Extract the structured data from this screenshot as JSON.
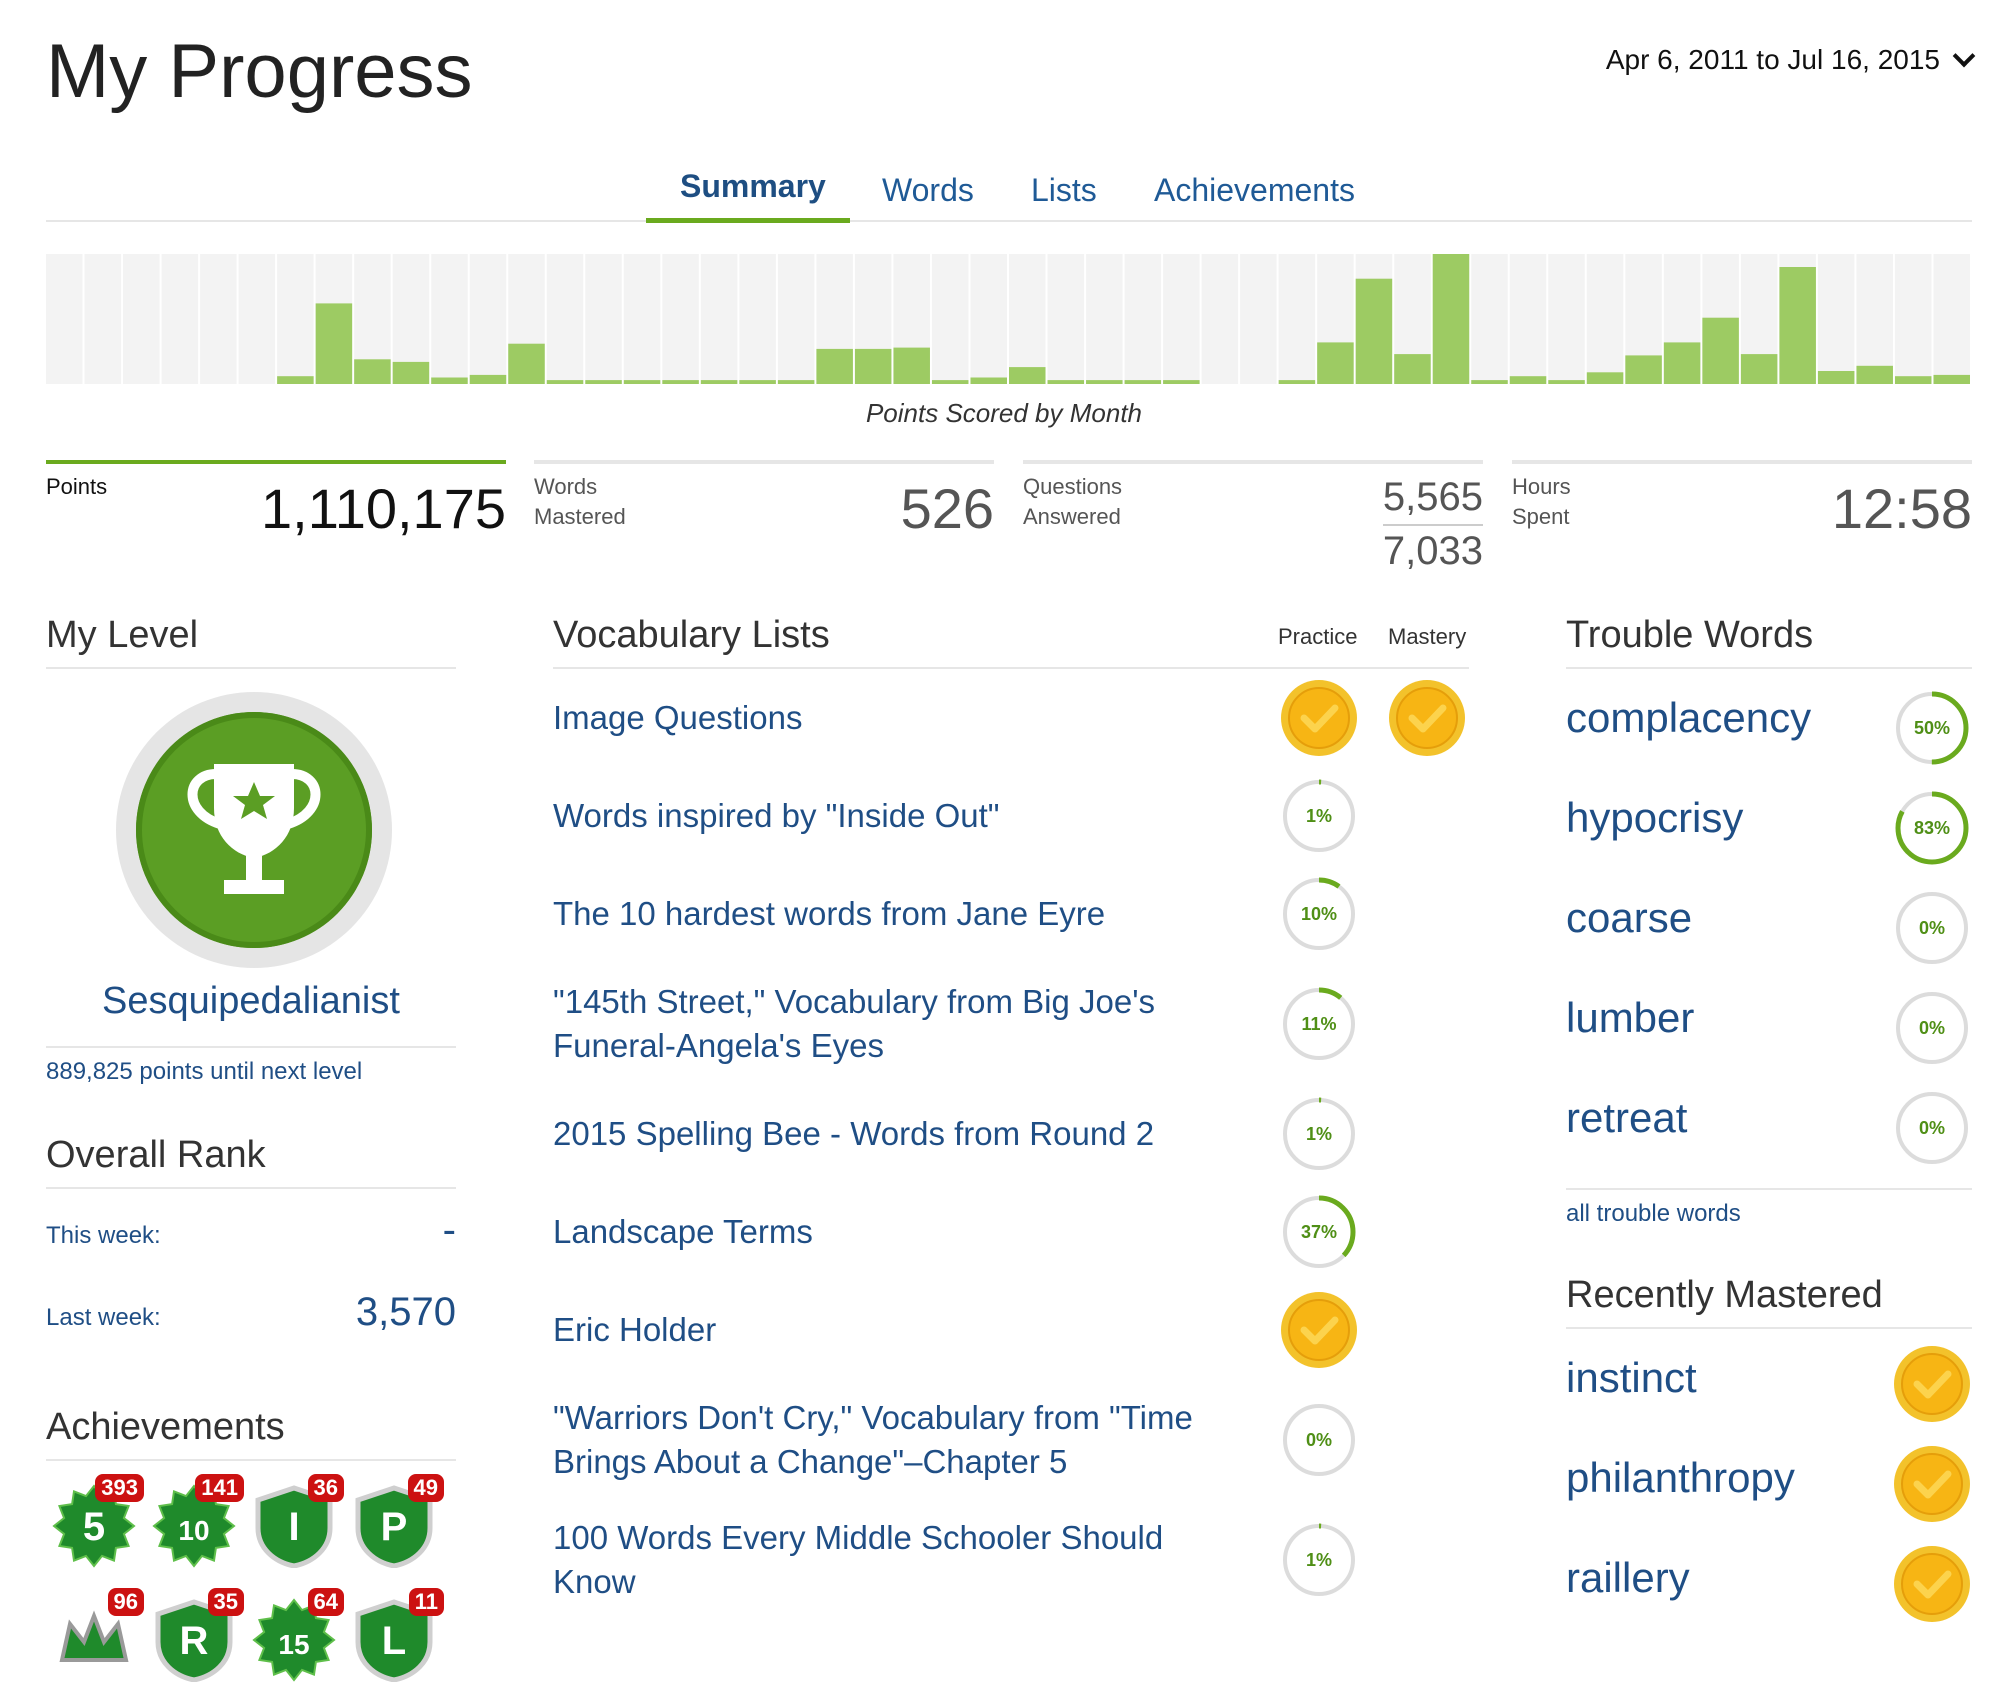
{
  "page": {
    "title": "My Progress",
    "date_range": "Apr 6, 2011 to Jul 16, 2015"
  },
  "tabs": [
    {
      "label": "Summary",
      "active": true
    },
    {
      "label": "Words",
      "active": false
    },
    {
      "label": "Lists",
      "active": false
    },
    {
      "label": "Achievements",
      "active": false
    }
  ],
  "chart_data": {
    "type": "bar",
    "title": "Points Scored by Month",
    "values": [
      0,
      0,
      0,
      0,
      0,
      0,
      0.06,
      0.62,
      0.19,
      0.17,
      0.05,
      0.07,
      0.31,
      0.03,
      0.03,
      0.03,
      0.03,
      0.03,
      0.03,
      0.03,
      0.27,
      0.27,
      0.28,
      0.03,
      0.05,
      0.13,
      0.03,
      0.03,
      0.03,
      0.03,
      0,
      0,
      0.03,
      0.32,
      0.81,
      0.23,
      1.0,
      0.03,
      0.06,
      0.03,
      0.09,
      0.22,
      0.32,
      0.51,
      0.23,
      0.9,
      0.1,
      0.14,
      0.06,
      0.07
    ],
    "ylim": [
      0,
      1
    ],
    "grid": true,
    "colors": {
      "bar": "#9dcb63",
      "background": "#f3f3f3"
    }
  },
  "stats": {
    "points": {
      "label": "Points",
      "value": "1,110,175"
    },
    "words_mastered": {
      "label_line1": "Words",
      "label_line2": "Mastered",
      "value": "526"
    },
    "questions": {
      "label_line1": "Questions",
      "label_line2": "Answered",
      "correct": "5,565",
      "total": "7,033"
    },
    "hours": {
      "label_line1": "Hours",
      "label_line2": "Spent",
      "value": "12:58"
    }
  },
  "level": {
    "heading": "My Level",
    "name": "Sesquipedalianist",
    "next": "889,825 points until next level"
  },
  "rank": {
    "heading": "Overall Rank",
    "this_week_label": "This week:",
    "this_week_value": "-",
    "last_week_label": "Last week:",
    "last_week_value": "3,570"
  },
  "achievements": {
    "heading": "Achievements",
    "items": [
      {
        "icon": "star-5-icon",
        "glyph": "5",
        "count": "393"
      },
      {
        "icon": "star-10-icon",
        "glyph": "10",
        "count": "141"
      },
      {
        "icon": "shield-i-icon",
        "glyph": "I",
        "count": "36"
      },
      {
        "icon": "shield-p-icon",
        "glyph": "P",
        "count": "49"
      },
      {
        "icon": "crown-icon",
        "glyph": "",
        "count": "96"
      },
      {
        "icon": "shield-r-icon",
        "glyph": "R",
        "count": "35"
      },
      {
        "icon": "star-15-icon",
        "glyph": "15",
        "count": "64"
      },
      {
        "icon": "shield-l-icon",
        "glyph": "L",
        "count": "11"
      }
    ]
  },
  "vocab": {
    "heading": "Vocabulary Lists",
    "practice_label": "Practice",
    "mastery_label": "Mastery",
    "lists": [
      {
        "name": "Image Questions",
        "practice": "done",
        "mastery": "done"
      },
      {
        "name": "Words inspired by \"Inside Out\"",
        "practice": "1%",
        "pct": 1
      },
      {
        "name": "The 10 hardest words from Jane Eyre",
        "practice": "10%",
        "pct": 10
      },
      {
        "name": "\"145th Street,\" Vocabulary from Big Joe's Funeral-Angela's Eyes",
        "practice": "11%",
        "pct": 11
      },
      {
        "name": "2015 Spelling Bee - Words from Round 2",
        "practice": "1%",
        "pct": 1
      },
      {
        "name": "Landscape Terms",
        "practice": "37%",
        "pct": 37
      },
      {
        "name": "Eric Holder",
        "practice": "done"
      },
      {
        "name": "\"Warriors Don't Cry,\" Vocabulary from \"Time Brings About a Change\"–Chapter 5",
        "practice": "0%",
        "pct": 0
      },
      {
        "name": "100 Words Every Middle Schooler Should Know",
        "practice": "1%",
        "pct": 1
      }
    ]
  },
  "trouble": {
    "heading": "Trouble Words",
    "words": [
      {
        "word": "complacency",
        "pct_label": "50%",
        "pct": 50
      },
      {
        "word": "hypocrisy",
        "pct_label": "83%",
        "pct": 83
      },
      {
        "word": "coarse",
        "pct_label": "0%",
        "pct": 0
      },
      {
        "word": "lumber",
        "pct_label": "0%",
        "pct": 0
      },
      {
        "word": "retreat",
        "pct_label": "0%",
        "pct": 0
      }
    ],
    "all_link": "all trouble words"
  },
  "mastered": {
    "heading": "Recently Mastered",
    "words": [
      "instinct",
      "philanthropy",
      "raillery"
    ]
  }
}
